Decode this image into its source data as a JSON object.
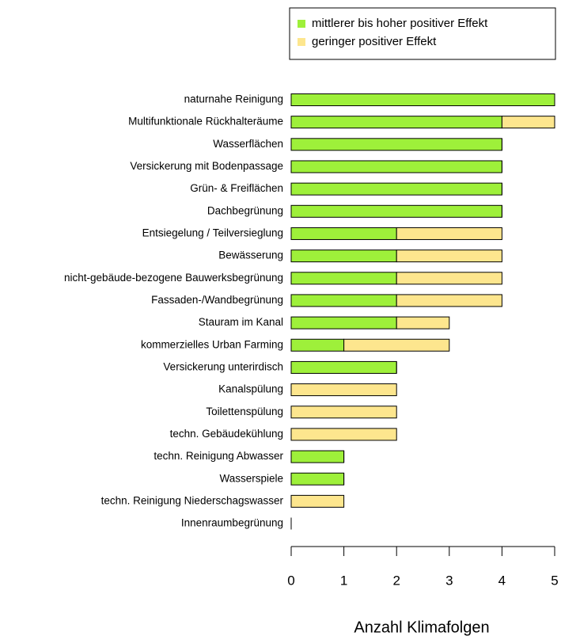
{
  "chart_data": {
    "type": "barh_stacked",
    "xlabel": "Anzahl Klimafolgen",
    "categories": [
      "naturnahe Reinigung",
      "Multifunktionale Rückhalteräume",
      "Wasserflächen",
      "Versickerung mit Bodenpassage",
      "Grün- & Freiflächen",
      "Dachbegrünung",
      "Entsiegelung / Teilversieglung",
      "Bewässerung",
      "nicht-gebäude-bezogene Bauwerksbegrünung",
      "Fassaden-/Wandbegrünung",
      "Stauram im Kanal",
      "kommerzielles Urban Farming",
      "Versickerung unterirdisch",
      "Kanalspülung",
      "Toilettenspülung",
      "techn. Gebäudekühlung",
      "techn. Reinigung Abwasser",
      "Wasserspiele",
      "techn. Reinigung Niederschagswasser",
      "Innenraumbegrünung"
    ],
    "series": [
      {
        "name": "mittlerer bis hoher positiver Effekt",
        "color": "#9ef03a",
        "values": [
          5,
          4,
          4,
          4,
          4,
          4,
          2,
          2,
          2,
          2,
          2,
          1,
          2,
          0,
          0,
          0,
          1,
          1,
          0,
          0
        ]
      },
      {
        "name": "geringer positiver Effekt",
        "color": "#fde68e",
        "values": [
          0,
          1,
          0,
          0,
          0,
          0,
          2,
          2,
          2,
          2,
          1,
          2,
          0,
          2,
          2,
          2,
          0,
          0,
          1,
          0
        ]
      }
    ],
    "xlim": [
      0,
      5
    ],
    "xticks": [
      0,
      1,
      2,
      3,
      4,
      5
    ],
    "legend": "top-right",
    "grid": false
  }
}
